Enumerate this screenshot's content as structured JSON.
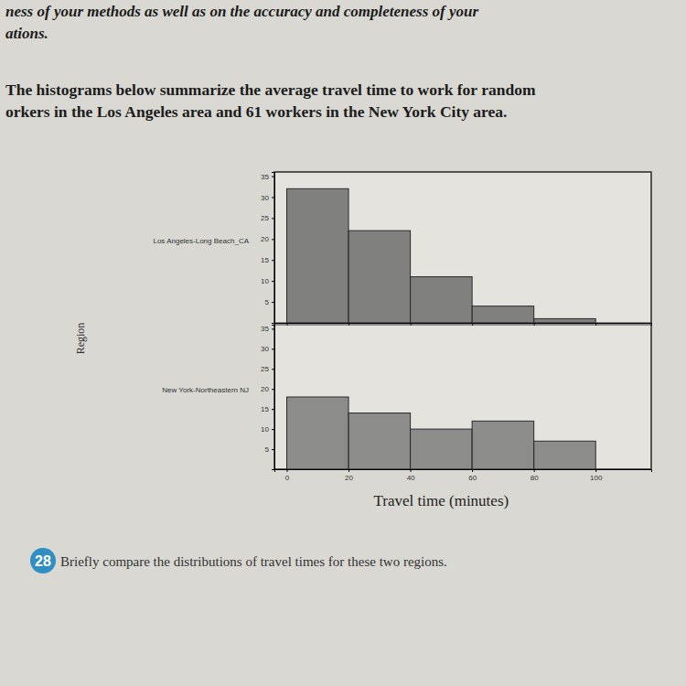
{
  "page": {
    "header_lines": [
      "ness of your methods as well as on the accuracy and completeness of your",
      "ations."
    ],
    "intro_lines": [
      "The histograms below summarize the average travel time to work for random",
      "orkers in the Los Angeles area and 61 workers in the New York City area."
    ],
    "y_label": "Region",
    "question_number": "28",
    "question": "Briefly compare the distributions of travel times for these two regions."
  },
  "chart_data": [
    {
      "type": "histogram",
      "title": "Los Angeles-Long Beach_CA",
      "bins": [
        0,
        20,
        40,
        60,
        80,
        100
      ],
      "values": [
        32,
        22,
        11,
        4,
        1
      ],
      "color": "#6f6f6f",
      "xlim": [
        -4,
        118
      ],
      "xticks": [
        0,
        20,
        40,
        60,
        80,
        100
      ],
      "ylim": [
        0,
        36
      ],
      "yticks": [
        5,
        10,
        15,
        20,
        25,
        30,
        35
      ],
      "tick_labels": "y"
    },
    {
      "type": "histogram",
      "title": "New York-Northeastern NJ",
      "bins": [
        0,
        20,
        40,
        60,
        80,
        100
      ],
      "values": [
        18,
        14,
        10,
        12,
        7
      ],
      "color": "#7d7d7d",
      "xlim": [
        -4,
        118
      ],
      "xticks": [
        0,
        20,
        40,
        60,
        80,
        100
      ],
      "ylim": [
        0,
        36
      ],
      "yticks": [
        5,
        10,
        15,
        20,
        25,
        30,
        35
      ],
      "x_label": "Travel time (minutes)"
    }
  ]
}
